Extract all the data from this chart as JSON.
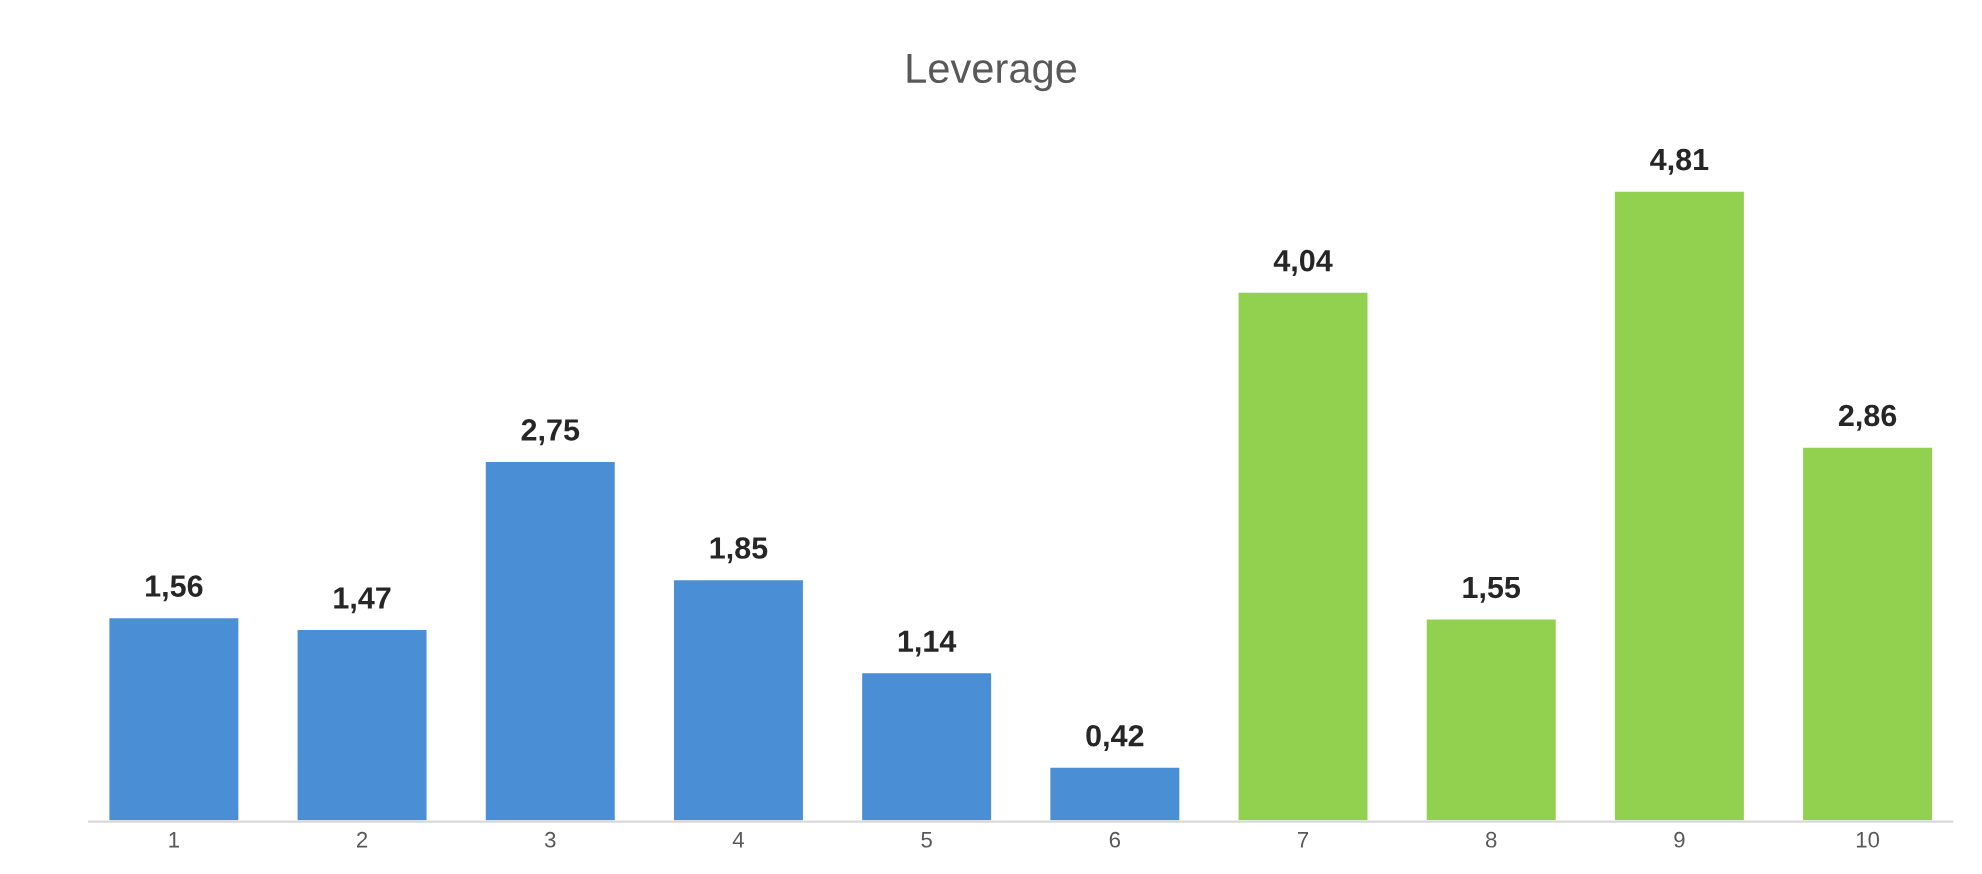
{
  "chart_data": {
    "type": "bar",
    "title": "Leverage",
    "categories": [
      "1",
      "2",
      "3",
      "4",
      "5",
      "6",
      "7",
      "8",
      "9",
      "10"
    ],
    "values": [
      1.56,
      1.47,
      2.75,
      1.85,
      1.14,
      0.42,
      4.04,
      1.55,
      4.81,
      2.86
    ],
    "colors": [
      "#4a8fd6",
      "#4a8fd6",
      "#4a8fd6",
      "#4a8fd6",
      "#4a8fd6",
      "#4a8fd6",
      "#92d050",
      "#92d050",
      "#92d050",
      "#92d050"
    ],
    "value_labels": [
      "1,56",
      "1,47",
      "2,75",
      "1,85",
      "1,14",
      "0,42",
      "4,04",
      "1,55",
      "4,81",
      "2,86"
    ],
    "grid": false,
    "legend": false
  }
}
